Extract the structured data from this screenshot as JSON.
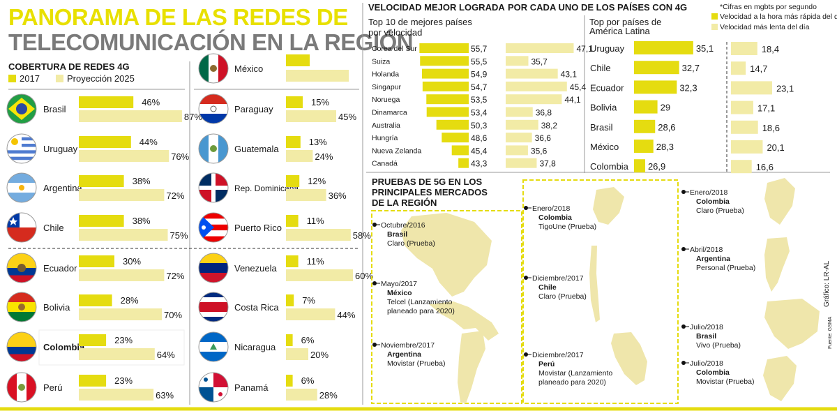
{
  "header": {
    "title_line1": "PANORAMA DE LAS REDES DE",
    "title_line2": "TELECOMUNICACIÓN EN LA REGIÓN"
  },
  "colors": {
    "strong": "#e5dc10",
    "light": "#f2eba6",
    "gray": "#7a7a7a"
  },
  "notes": {
    "units": "*Cifras en mgbts por segundo",
    "legend_fast": "Velocidad a la hora más rápida del día",
    "legend_slow": "Velocidad más lenta del día",
    "credit": "Gráfico: LR-AL",
    "source": "Fuente: GSMA"
  },
  "chart_data": [
    {
      "type": "bar",
      "title": "COBERTURA DE REDES 4G",
      "legend": [
        "2017",
        "Proyección 2025"
      ],
      "series": [
        {
          "name": "2017",
          "values": [
            46,
            44,
            38,
            38,
            30,
            28,
            23,
            23,
            null,
            15,
            13,
            12,
            11,
            11,
            7,
            6,
            6
          ]
        },
        {
          "name": "Proyección 2025",
          "values": [
            87,
            76,
            72,
            75,
            72,
            70,
            64,
            63,
            null,
            45,
            24,
            36,
            58,
            60,
            44,
            20,
            28
          ]
        }
      ],
      "categories": [
        "Brasil",
        "Uruguay",
        "Argentina",
        "Chile",
        "Ecuador",
        "Bolivia",
        "Colombia",
        "Perú",
        "México",
        "Paraguay",
        "Guatemala",
        "Rep. Dominicana",
        "Puerto Rico",
        "Venezuela",
        "Costa Rica",
        "Nicaragua",
        "Panamá"
      ],
      "labels_2017": [
        "46%",
        "44%",
        "38%",
        "38%",
        "30%",
        "28%",
        "23%",
        "23%",
        "",
        "15%",
        "13%",
        "12%",
        "11%",
        "11%",
        "7%",
        "6%",
        "6%"
      ],
      "labels_2025": [
        "87%",
        "76%",
        "72%",
        "75%",
        "72%",
        "70%",
        "64%",
        "63%",
        "",
        "45%",
        "24%",
        "36%",
        "58%",
        "60%",
        "44%",
        "20%",
        "28%"
      ]
    },
    {
      "type": "bar",
      "title": "VELOCIDAD MEJOR LOGRADA",
      "subtitle": "Top 10 de mejores países por velocidad",
      "categories": [
        "Corea del Sur",
        "Suiza",
        "Holanda",
        "Singapur",
        "Noruega",
        "Dinamarca",
        "Australia",
        "Hungría",
        "Nueva Zelanda",
        "Canadá"
      ],
      "series": [
        {
          "name": "Velocidad a la hora más rápida del día",
          "values": [
            55.7,
            55.5,
            54.9,
            54.7,
            53.5,
            53.4,
            50.3,
            48.6,
            45.4,
            43.3
          ]
        },
        {
          "name": "Velocidad más lenta del día",
          "values": [
            47.1,
            35.7,
            43.1,
            45.4,
            44.1,
            36.8,
            38.2,
            36.6,
            35.6,
            37.8
          ]
        }
      ],
      "labels_fast": [
        "55,7",
        "55,5",
        "54,9",
        "54,7",
        "53,5",
        "53,4",
        "50,3",
        "48,6",
        "45,4",
        "43,3"
      ],
      "labels_slow": [
        "47,1",
        "35,7",
        "43,1",
        "45,4",
        "44,1",
        "36,8",
        "38,2",
        "36,6",
        "35,6",
        "37,8"
      ]
    },
    {
      "type": "bar",
      "title": "POR CADA UNO DE LOS PAÍSES CON 4G",
      "subtitle": "Top por países de América Latina",
      "categories": [
        "Uruguay",
        "Chile",
        "Ecuador",
        "Bolivia",
        "Brasil",
        "México",
        "Colombia"
      ],
      "series": [
        {
          "name": "Velocidad a la hora más rápida del día",
          "values": [
            35.1,
            32.7,
            32.3,
            29,
            28.6,
            28.3,
            26.9
          ]
        },
        {
          "name": "Velocidad más lenta del día",
          "values": [
            18.4,
            14.7,
            23.1,
            17.1,
            18.6,
            20.1,
            16.6
          ]
        }
      ],
      "labels_fast": [
        "35,1",
        "32,7",
        "32,3",
        "29",
        "28,6",
        "28,3",
        "26,9"
      ],
      "labels_slow": [
        "18,4",
        "14,7",
        "23,1",
        "17,1",
        "18,6",
        "20,1",
        "16,6"
      ]
    }
  ],
  "tests5g": {
    "title_lines": [
      "PRUEBAS DE 5G EN LOS",
      "PRINCIPALES MERCADOS",
      "DE LA REGIÓN"
    ],
    "events": [
      {
        "date": "Octubre/2016",
        "country": "Brasil",
        "detail": [
          "Claro (Prueba)"
        ]
      },
      {
        "date": "Mayo/2017",
        "country": "México",
        "detail": [
          "Telcel (Lanzamiento",
          "planeado para 2020)"
        ]
      },
      {
        "date": "Noviembre/2017",
        "country": "Argentina",
        "detail": [
          "Movistar (Prueba)"
        ]
      },
      {
        "date": "Enero/2018",
        "country": "Colombia",
        "detail": [
          "TigoUne (Prueba)"
        ]
      },
      {
        "date": "Diciembre/2017",
        "country": "Chile",
        "detail": [
          "Claro (Prueba)"
        ]
      },
      {
        "date": "Diciembre/2017",
        "country": "Perú",
        "detail": [
          "Movistar (Lanzamiento",
          "planeado para 2020)"
        ]
      },
      {
        "date": "Enero/2018",
        "country": "Colombia",
        "detail": [
          "Claro (Prueba)"
        ]
      },
      {
        "date": "Abril/2018",
        "country": "Argentina",
        "detail": [
          "Personal (Prueba)"
        ]
      },
      {
        "date": "Julio/2018",
        "country": "Brasil",
        "detail": [
          "Vivo (Prueba)"
        ]
      },
      {
        "date": "Julio/2018",
        "country": "Colombia",
        "detail": [
          "Movistar (Prueba)"
        ]
      }
    ]
  }
}
